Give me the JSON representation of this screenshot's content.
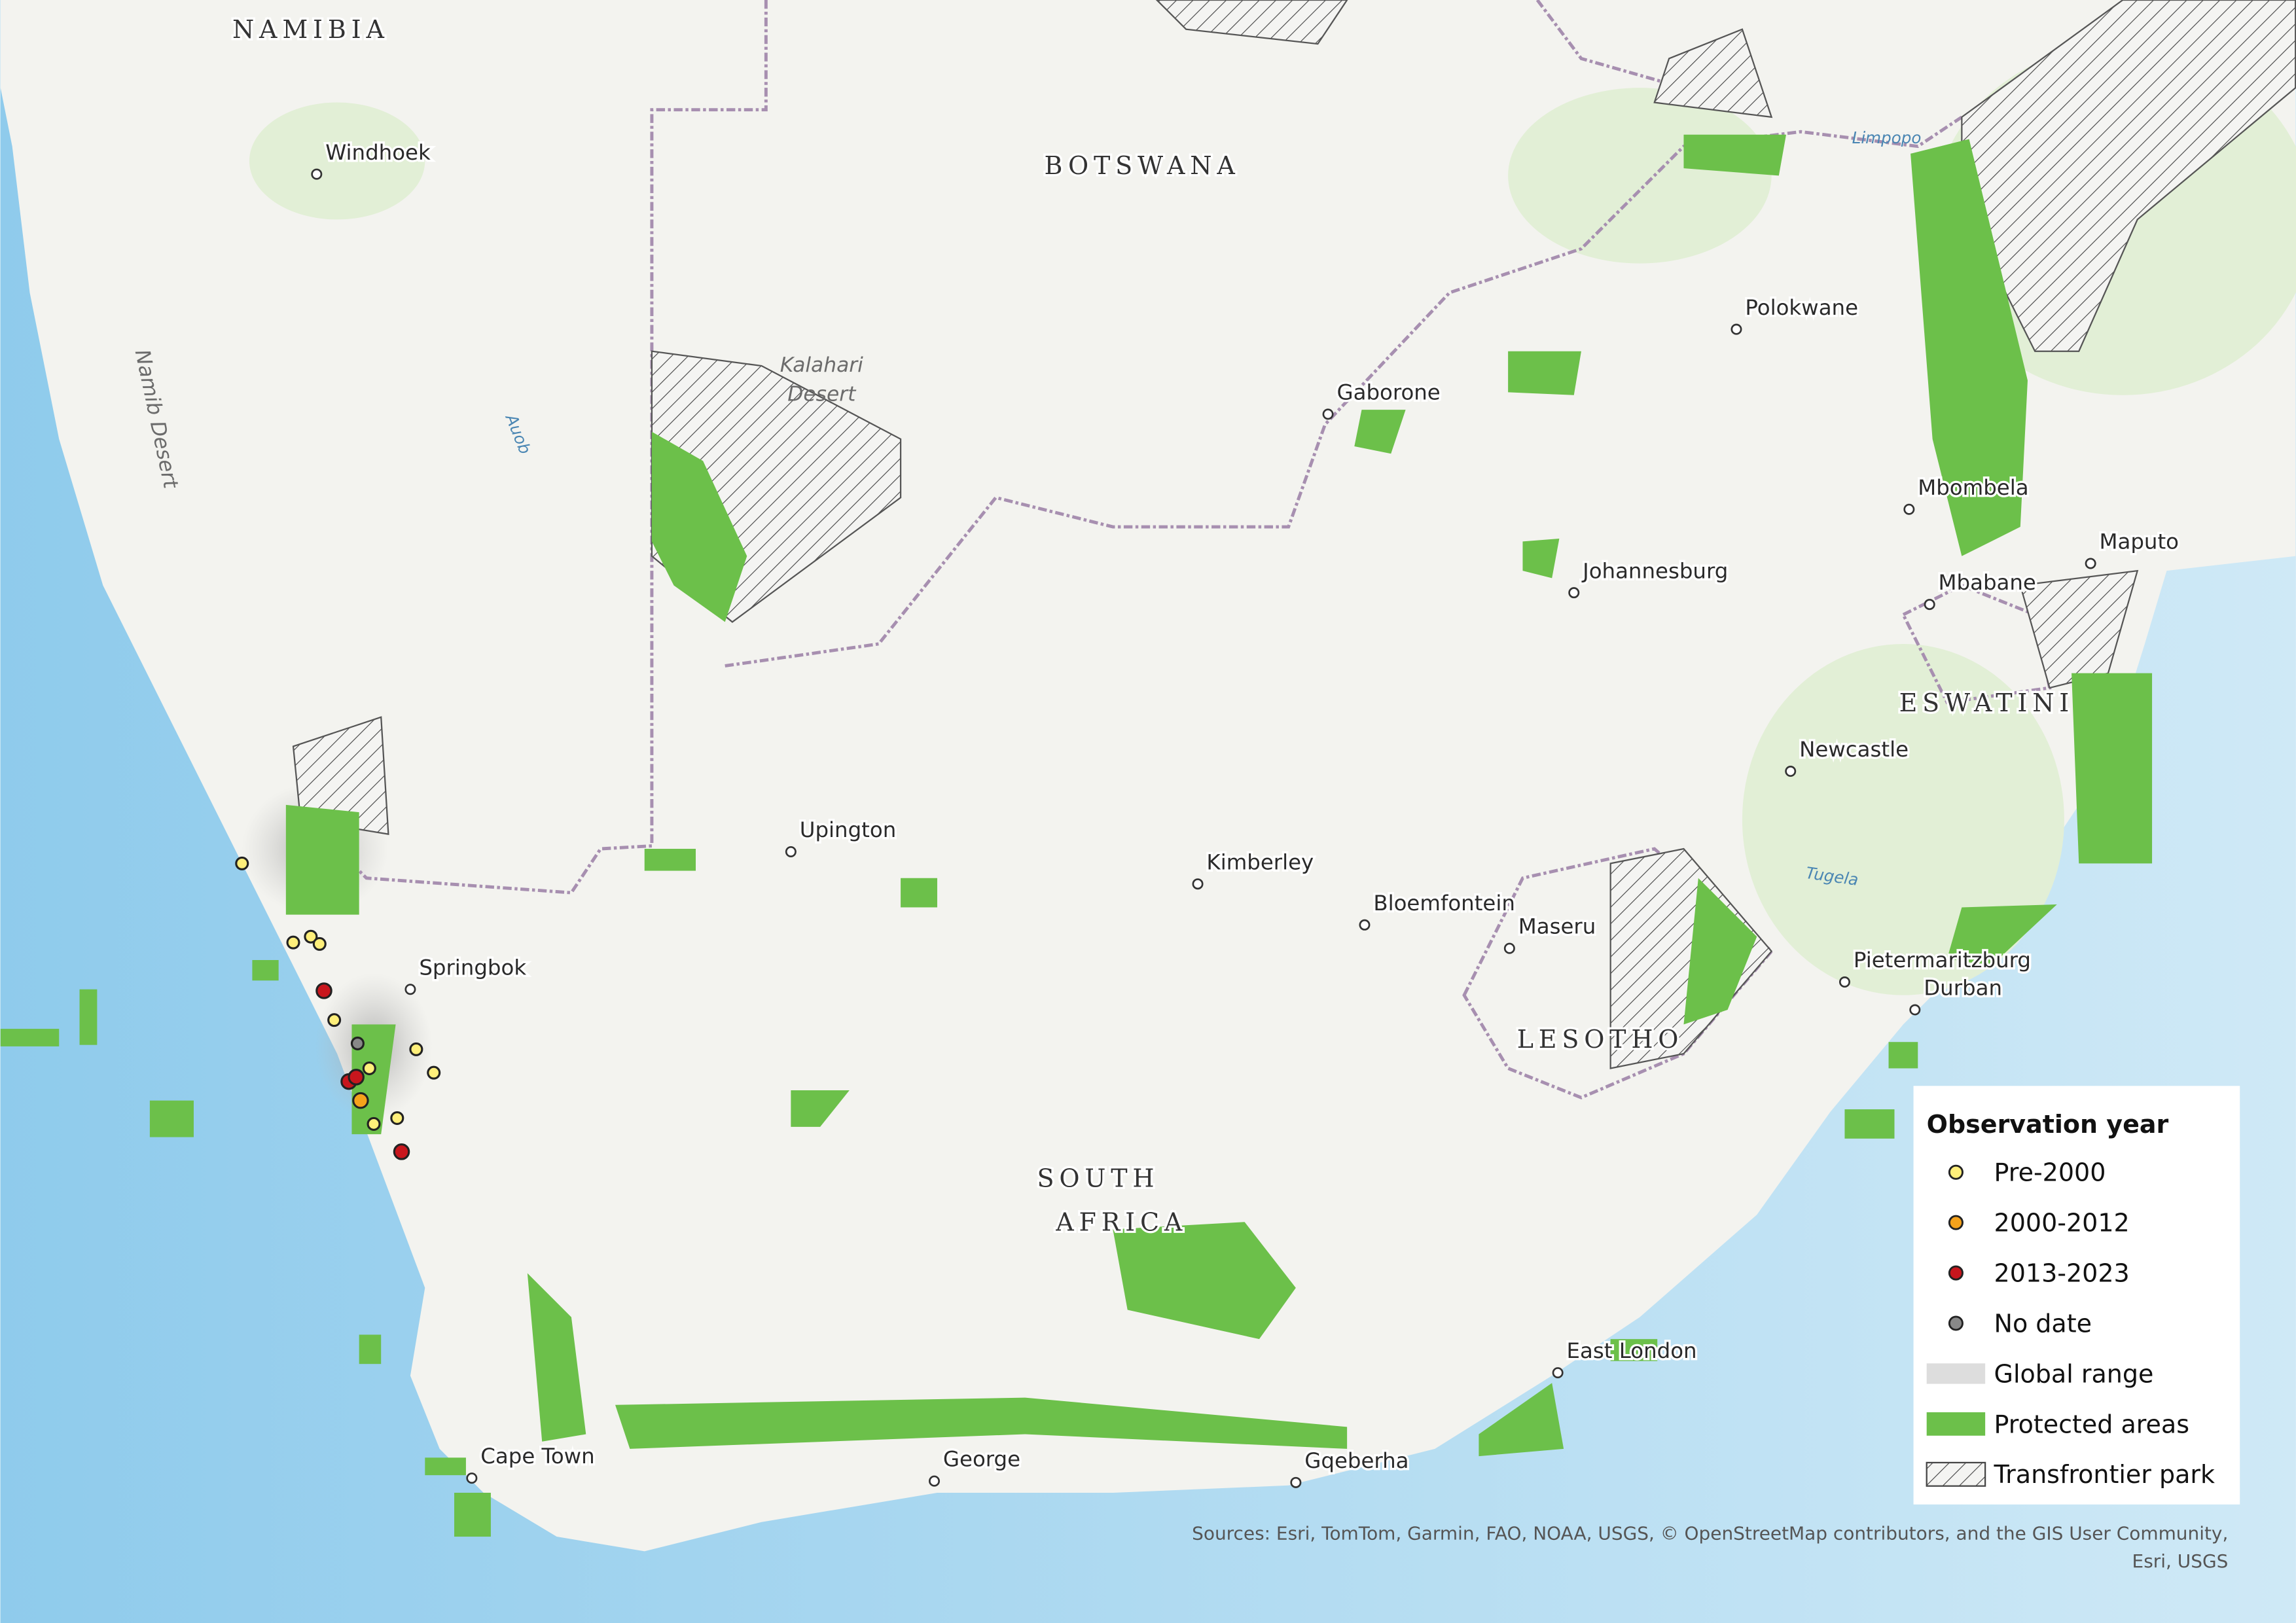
{
  "map": {
    "countries": [
      [
        "NAMIBIA"
      ],
      [
        "BOTSWANA"
      ],
      [
        "SOUTH",
        "AFRICA"
      ],
      [
        "LESOTHO"
      ],
      [
        "ESWATINI"
      ]
    ],
    "cities": [
      "Windhoek",
      "Gaborone",
      "Polokwane",
      "Mbombela",
      "Maputo",
      "Mbabane",
      "Johannesburg",
      "Newcastle",
      "Upington",
      "Kimberley",
      "Bloemfontein",
      "Maseru",
      "Springbok",
      "Pietermaritzburg",
      "Durban",
      "East London",
      "Cape Town",
      "George",
      "Gqeberha"
    ],
    "regions": [
      [
        "Kalahari",
        "Desert"
      ],
      [
        "Namib Desert"
      ]
    ],
    "rivers": [
      "Auob",
      "Limpopo",
      "Tugela"
    ]
  },
  "legend": {
    "title": "Observation year",
    "items": [
      "Pre-2000",
      "2000-2012",
      "2013-2023",
      "No date",
      "Global range",
      "Protected areas",
      "Transfrontier park"
    ]
  },
  "sources": [
    "Sources: Esri, TomTom, Garmin, FAO, NOAA, USGS, © OpenStreetMap contributors, and the GIS User Community,",
    "Esri, USGS"
  ]
}
